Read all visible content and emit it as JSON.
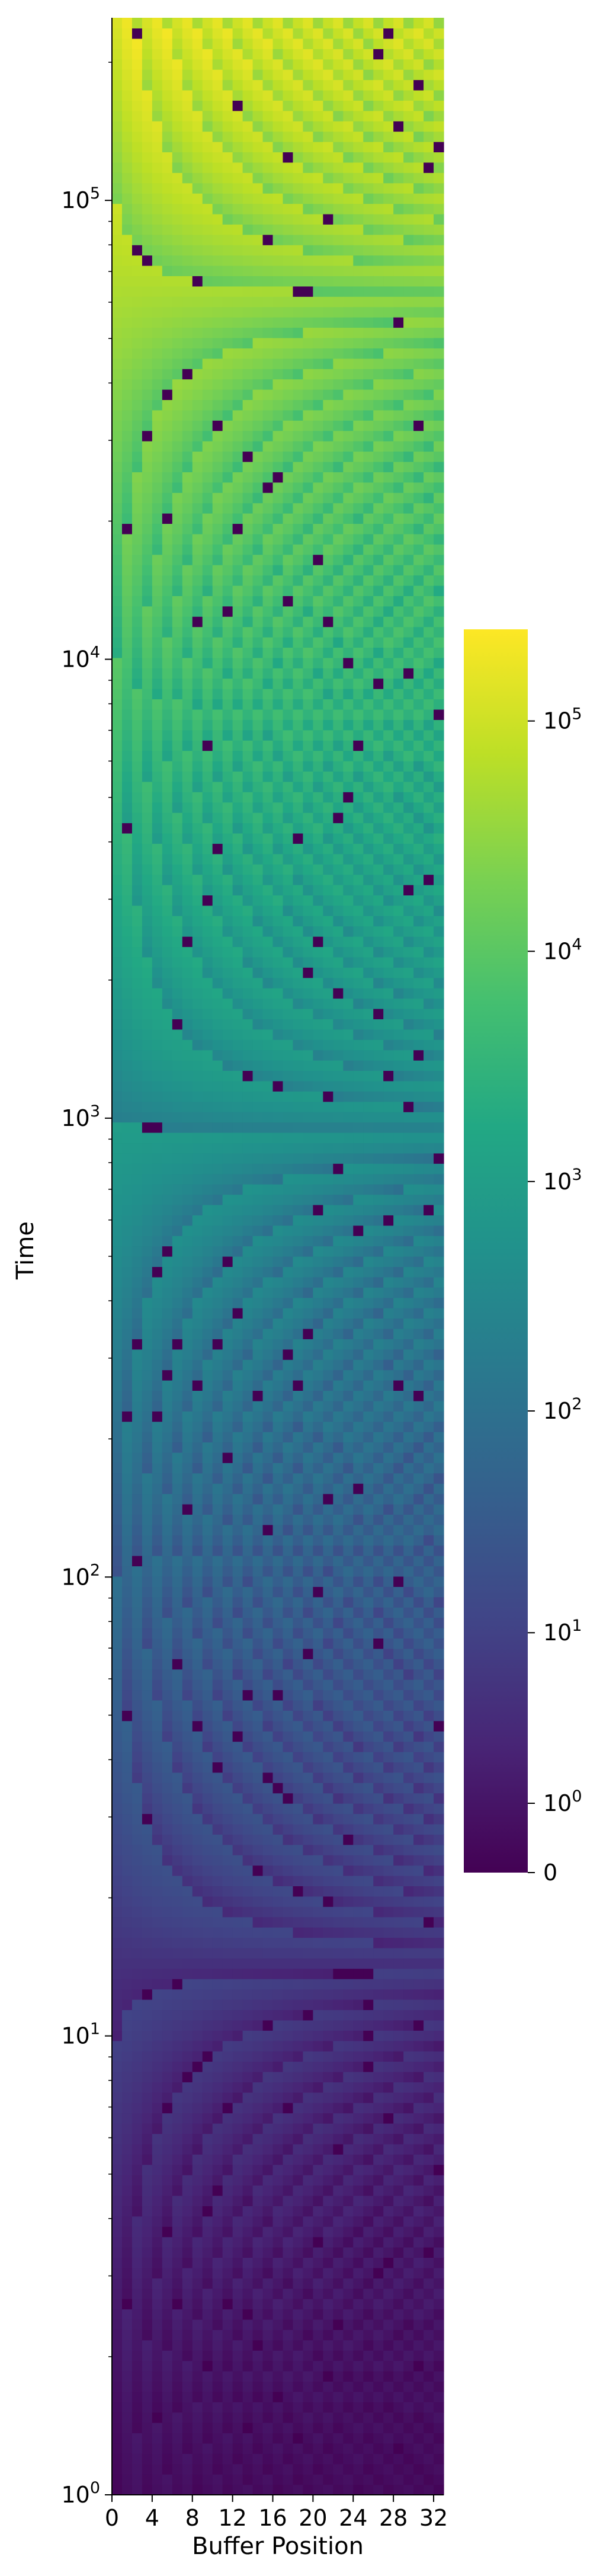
{
  "chart_data": {
    "type": "heatmap",
    "xlabel": "Buffer Position",
    "ylabel": "Time",
    "x_columns": 33,
    "x_ticks": [
      "0",
      "4",
      "8",
      "12",
      "16",
      "20",
      "24",
      "28",
      "32"
    ],
    "x_tick_values": [
      0,
      4,
      8,
      12,
      16,
      20,
      24,
      28,
      32
    ],
    "y_scale": "log",
    "y_range": [
      1,
      250000
    ],
    "y_ticks": [
      {
        "base": "10",
        "exp": "0",
        "value": 1
      },
      {
        "base": "10",
        "exp": "1",
        "value": 10
      },
      {
        "base": "10",
        "exp": "2",
        "value": 100
      },
      {
        "base": "10",
        "exp": "3",
        "value": 1000
      },
      {
        "base": "10",
        "exp": "4",
        "value": 10000
      },
      {
        "base": "10",
        "exp": "5",
        "value": 100000
      }
    ],
    "colormap": "viridis",
    "colorbar_scale": "symlog",
    "colorbar_range": [
      0,
      250000
    ],
    "colorbar_ticks": [
      {
        "base": "",
        "exp": "",
        "text": "0",
        "value": 0
      },
      {
        "base": "10",
        "exp": "0",
        "value": 1
      },
      {
        "base": "10",
        "exp": "1",
        "value": 10
      },
      {
        "base": "10",
        "exp": "2",
        "value": 100
      },
      {
        "base": "10",
        "exp": "3",
        "value": 1000
      },
      {
        "base": "10",
        "exp": "4",
        "value": 10000
      },
      {
        "base": "10",
        "exp": "5",
        "value": 100000
      }
    ],
    "pattern": "Each buffer position's value grows with time and resets to 0 at periodic, staggered times; reset frequency increases with buffer position (fan of diagonal reset streaks)."
  }
}
